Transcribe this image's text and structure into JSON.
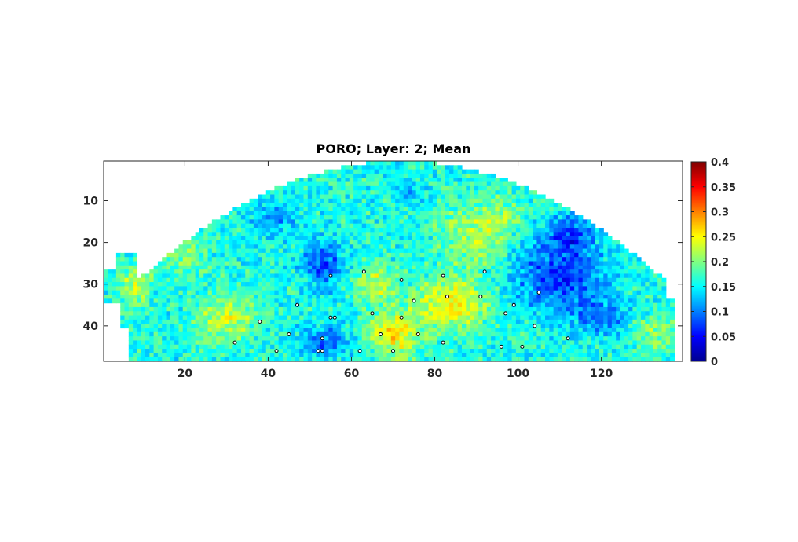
{
  "chart_data": {
    "type": "heatmap",
    "title": "PORO; Layer: 2; Mean",
    "xlabel": "",
    "ylabel": "",
    "xlim": [
      0.5,
      139.5
    ],
    "ylim": [
      0.5,
      48.5
    ],
    "y_reversed": true,
    "grid": false,
    "x_ticks": [
      20,
      40,
      60,
      80,
      100,
      120
    ],
    "y_ticks": [
      10,
      20,
      30,
      40
    ],
    "colormap": "jet",
    "color_limits": [
      0,
      0.4
    ],
    "colorbar": {
      "ticks": [
        0,
        0.05,
        0.1,
        0.15,
        0.2,
        0.25,
        0.3,
        0.35,
        0.4
      ],
      "tick_labels": [
        "0",
        "0.05",
        "0.1",
        "0.15",
        "0.2",
        "0.25",
        "0.3",
        "0.35",
        "0.4"
      ],
      "placement": "right"
    },
    "wells": [
      [
        55,
        28
      ],
      [
        63,
        27
      ],
      [
        72,
        29
      ],
      [
        82,
        28
      ],
      [
        92,
        27
      ],
      [
        47,
        35
      ],
      [
        75,
        34
      ],
      [
        83,
        33
      ],
      [
        91,
        33
      ],
      [
        99,
        35
      ],
      [
        105,
        32
      ],
      [
        38,
        39
      ],
      [
        55,
        38
      ],
      [
        56,
        38
      ],
      [
        65,
        37
      ],
      [
        72,
        38
      ],
      [
        97,
        37
      ],
      [
        45,
        42
      ],
      [
        53,
        43
      ],
      [
        67,
        42
      ],
      [
        76,
        42
      ],
      [
        104,
        40
      ],
      [
        112,
        43
      ],
      [
        32,
        44
      ],
      [
        82,
        44
      ],
      [
        96,
        45
      ],
      [
        101,
        45
      ],
      [
        42,
        46
      ],
      [
        52,
        46
      ],
      [
        53,
        46
      ],
      [
        62,
        46
      ],
      [
        70,
        46
      ]
    ],
    "background_value": 0.16,
    "anomalies": [
      {
        "cx": 53,
        "cy": 25,
        "rx": 5,
        "ry": 6,
        "v": 0.08
      },
      {
        "cx": 41,
        "cy": 14,
        "rx": 6,
        "ry": 4,
        "v": 0.11
      },
      {
        "cx": 110,
        "cy": 28,
        "rx": 11,
        "ry": 9,
        "v": 0.07
      },
      {
        "cx": 112,
        "cy": 18,
        "rx": 6,
        "ry": 4,
        "v": 0.09
      },
      {
        "cx": 54,
        "cy": 44,
        "rx": 6,
        "ry": 4,
        "v": 0.09
      },
      {
        "cx": 120,
        "cy": 38,
        "rx": 6,
        "ry": 4,
        "v": 0.1
      },
      {
        "cx": 74,
        "cy": 8,
        "rx": 4,
        "ry": 3,
        "v": 0.13
      },
      {
        "cx": 90,
        "cy": 18,
        "rx": 8,
        "ry": 8,
        "v": 0.22
      },
      {
        "cx": 84,
        "cy": 35,
        "rx": 9,
        "ry": 6,
        "v": 0.25
      },
      {
        "cx": 70,
        "cy": 42,
        "rx": 6,
        "ry": 5,
        "v": 0.26
      },
      {
        "cx": 30,
        "cy": 38,
        "rx": 7,
        "ry": 5,
        "v": 0.23
      },
      {
        "cx": 20,
        "cy": 22,
        "rx": 5,
        "ry": 5,
        "v": 0.21
      },
      {
        "cx": 8,
        "cy": 30,
        "rx": 4,
        "ry": 5,
        "v": 0.22
      },
      {
        "cx": 66,
        "cy": 30,
        "rx": 5,
        "ry": 4,
        "v": 0.23
      },
      {
        "cx": 133,
        "cy": 42,
        "rx": 5,
        "ry": 5,
        "v": 0.2
      },
      {
        "cx": 98,
        "cy": 14,
        "rx": 6,
        "ry": 4,
        "v": 0.19
      }
    ]
  }
}
